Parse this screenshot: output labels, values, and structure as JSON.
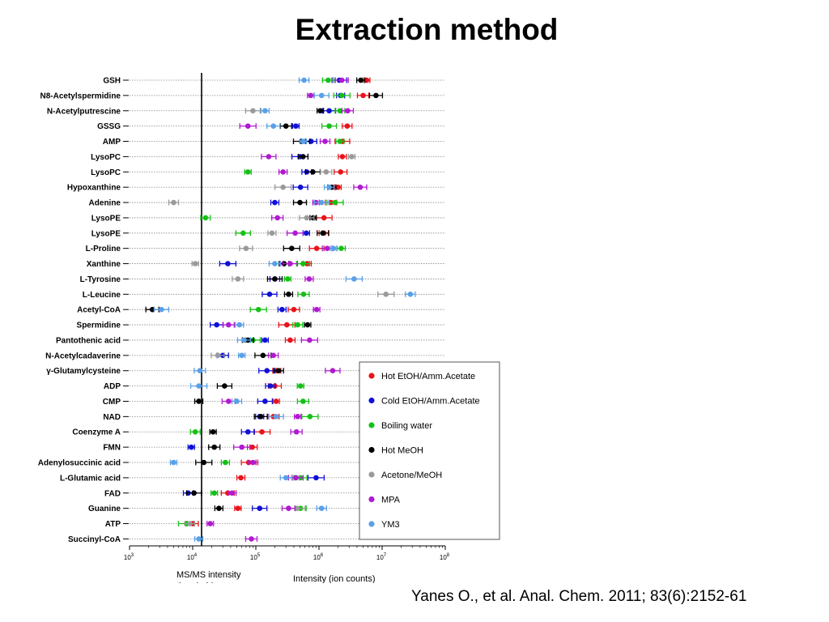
{
  "slide": {
    "title": "Extraction method",
    "citation": "Yanes O., et al. Anal. Chem. 2011; 83(6):2152-61"
  },
  "chart_data": {
    "type": "scatter",
    "title": "",
    "xlabel": "Intensity (ion counts)",
    "x_scale": "log",
    "xlim": [
      1000,
      100000000
    ],
    "x_ticks": [
      {
        "value": 1000,
        "base": "10",
        "exp": "3"
      },
      {
        "value": 10000,
        "base": "10",
        "exp": "4"
      },
      {
        "value": 100000,
        "base": "10",
        "exp": "5"
      },
      {
        "value": 1000000,
        "base": "10",
        "exp": "6"
      },
      {
        "value": 10000000,
        "base": "10",
        "exp": "7"
      },
      {
        "value": 100000000,
        "base": "10",
        "exp": "8"
      }
    ],
    "threshold": {
      "value": 14000,
      "label_line1": "MS/MS intensity",
      "label_line2": "threshold"
    },
    "grid": "horizontal dotted",
    "legend_position": "right",
    "series": [
      {
        "name": "Hot EtOH/Amm.Acetate",
        "color": "#e8141a"
      },
      {
        "name": "Cold EtOH/Amm.Acetate",
        "color": "#1010d8"
      },
      {
        "name": "Boiling water",
        "color": "#16c016"
      },
      {
        "name": "Hot MeOH",
        "color": "#000000"
      },
      {
        "name": "Acetone/MeOH",
        "color": "#9a9a9a"
      },
      {
        "name": "MPA",
        "color": "#b01ad0"
      },
      {
        "name": "YM3",
        "color": "#5aa0e6"
      }
    ],
    "categories": [
      {
        "label": "GSH",
        "values": [
          5700000,
          2100000,
          1400000,
          4600000,
          null,
          2300000,
          580000
        ]
      },
      {
        "label": "N8-Acetylspermidine",
        "values": [
          5000000,
          2200000,
          2300000,
          8000000,
          null,
          740000,
          1100000
        ]
      },
      {
        "label": "N-Acetylputrescine",
        "values": [
          null,
          1450000,
          2150000,
          1050000,
          90000,
          2850000,
          140000
        ]
      },
      {
        "label": "GSSG",
        "values": [
          2800000,
          430000,
          1450000,
          300000,
          null,
          75000,
          190000
        ]
      },
      {
        "label": "AMP",
        "values": [
          2350000,
          750000,
          2150000,
          530000,
          null,
          1250000,
          560000
        ]
      },
      {
        "label": "LysoPC",
        "values": [
          2350000,
          500000,
          null,
          560000,
          3300000,
          160000,
          null
        ]
      },
      {
        "label": "LysoPC",
        "values": [
          2200000,
          640000,
          75000,
          800000,
          1300000,
          270000,
          null
        ]
      },
      {
        "label": "Hypoxanthine",
        "values": [
          2000000,
          510000,
          null,
          1600000,
          270000,
          4500000,
          1450000
        ]
      },
      {
        "label": "Adenine",
        "values": [
          1550000,
          200000,
          1800000,
          500000,
          5000,
          900000,
          1100000
        ]
      },
      {
        "label": "LysoPE",
        "values": [
          1200000,
          null,
          16000,
          810000,
          640000,
          220000,
          null
        ]
      },
      {
        "label": "LysoPE",
        "values": [
          1200000,
          630000,
          63000,
          1150000,
          180000,
          420000,
          null
        ]
      },
      {
        "label": "L-Proline",
        "values": [
          920000,
          null,
          2250000,
          370000,
          70000,
          1350000,
          1700000
        ]
      },
      {
        "label": "Xanthine",
        "values": [
          650000,
          36000,
          560000,
          280000,
          11000,
          350000,
          200000
        ]
      },
      {
        "label": "L-Tyrosine",
        "values": [
          null,
          200000,
          320000,
          200000,
          52000,
          700000,
          3600000
        ]
      },
      {
        "label": "L-Leucine",
        "values": [
          null,
          165000,
          570000,
          330000,
          11500000,
          null,
          28000000
        ]
      },
      {
        "label": "Acetyl-CoA",
        "values": [
          400000,
          260000,
          110000,
          2300,
          null,
          920000,
          3200
        ]
      },
      {
        "label": "Spermidine",
        "values": [
          310000,
          24000,
          460000,
          660000,
          null,
          37000,
          55000
        ]
      },
      {
        "label": "Pantothenic acid",
        "values": [
          350000,
          140000,
          90000,
          75000,
          null,
          710000,
          65000
        ]
      },
      {
        "label": "N-Acetylcadaverine",
        "values": [
          null,
          30000,
          null,
          130000,
          25000,
          190000,
          60000
        ]
      },
      {
        "label": "γ-Glutamylcysteine",
        "values": [
          215000,
          150000,
          null,
          230000,
          null,
          1650000,
          13000
        ]
      },
      {
        "label": "ADP",
        "values": [
          200000,
          170000,
          510000,
          32000,
          null,
          null,
          12500
        ]
      },
      {
        "label": "CMP",
        "values": [
          210000,
          140000,
          560000,
          12500,
          null,
          37000,
          50000
        ]
      },
      {
        "label": "NAD",
        "values": [
          190000,
          115000,
          720000,
          120000,
          null,
          460000,
          210000
        ]
      },
      {
        "label": "Coenzyme A",
        "values": [
          125000,
          75000,
          11000,
          21000,
          null,
          440000,
          null
        ]
      },
      {
        "label": "FMN",
        "values": [
          88000,
          9500,
          null,
          22000,
          null,
          60000,
          null
        ]
      },
      {
        "label": "Adenylosuccinic acid",
        "values": [
          77000,
          null,
          33000,
          15000,
          null,
          90000,
          5000
        ]
      },
      {
        "label": "L-Glutamic acid",
        "values": [
          58000,
          900000,
          510000,
          null,
          430000,
          430000,
          300000
        ]
      },
      {
        "label": "FAD",
        "values": [
          36000,
          8500,
          22000,
          10500,
          null,
          42000,
          null
        ]
      },
      {
        "label": "Guanine",
        "values": [
          52000,
          115000,
          510000,
          26000,
          450000,
          330000,
          1100000
        ]
      },
      {
        "label": "ATP",
        "values": [
          10000,
          null,
          8000,
          null,
          9000,
          19000,
          null
        ]
      },
      {
        "label": "Succinyl-CoA",
        "values": [
          null,
          null,
          null,
          null,
          null,
          85000,
          12500
        ]
      }
    ]
  }
}
